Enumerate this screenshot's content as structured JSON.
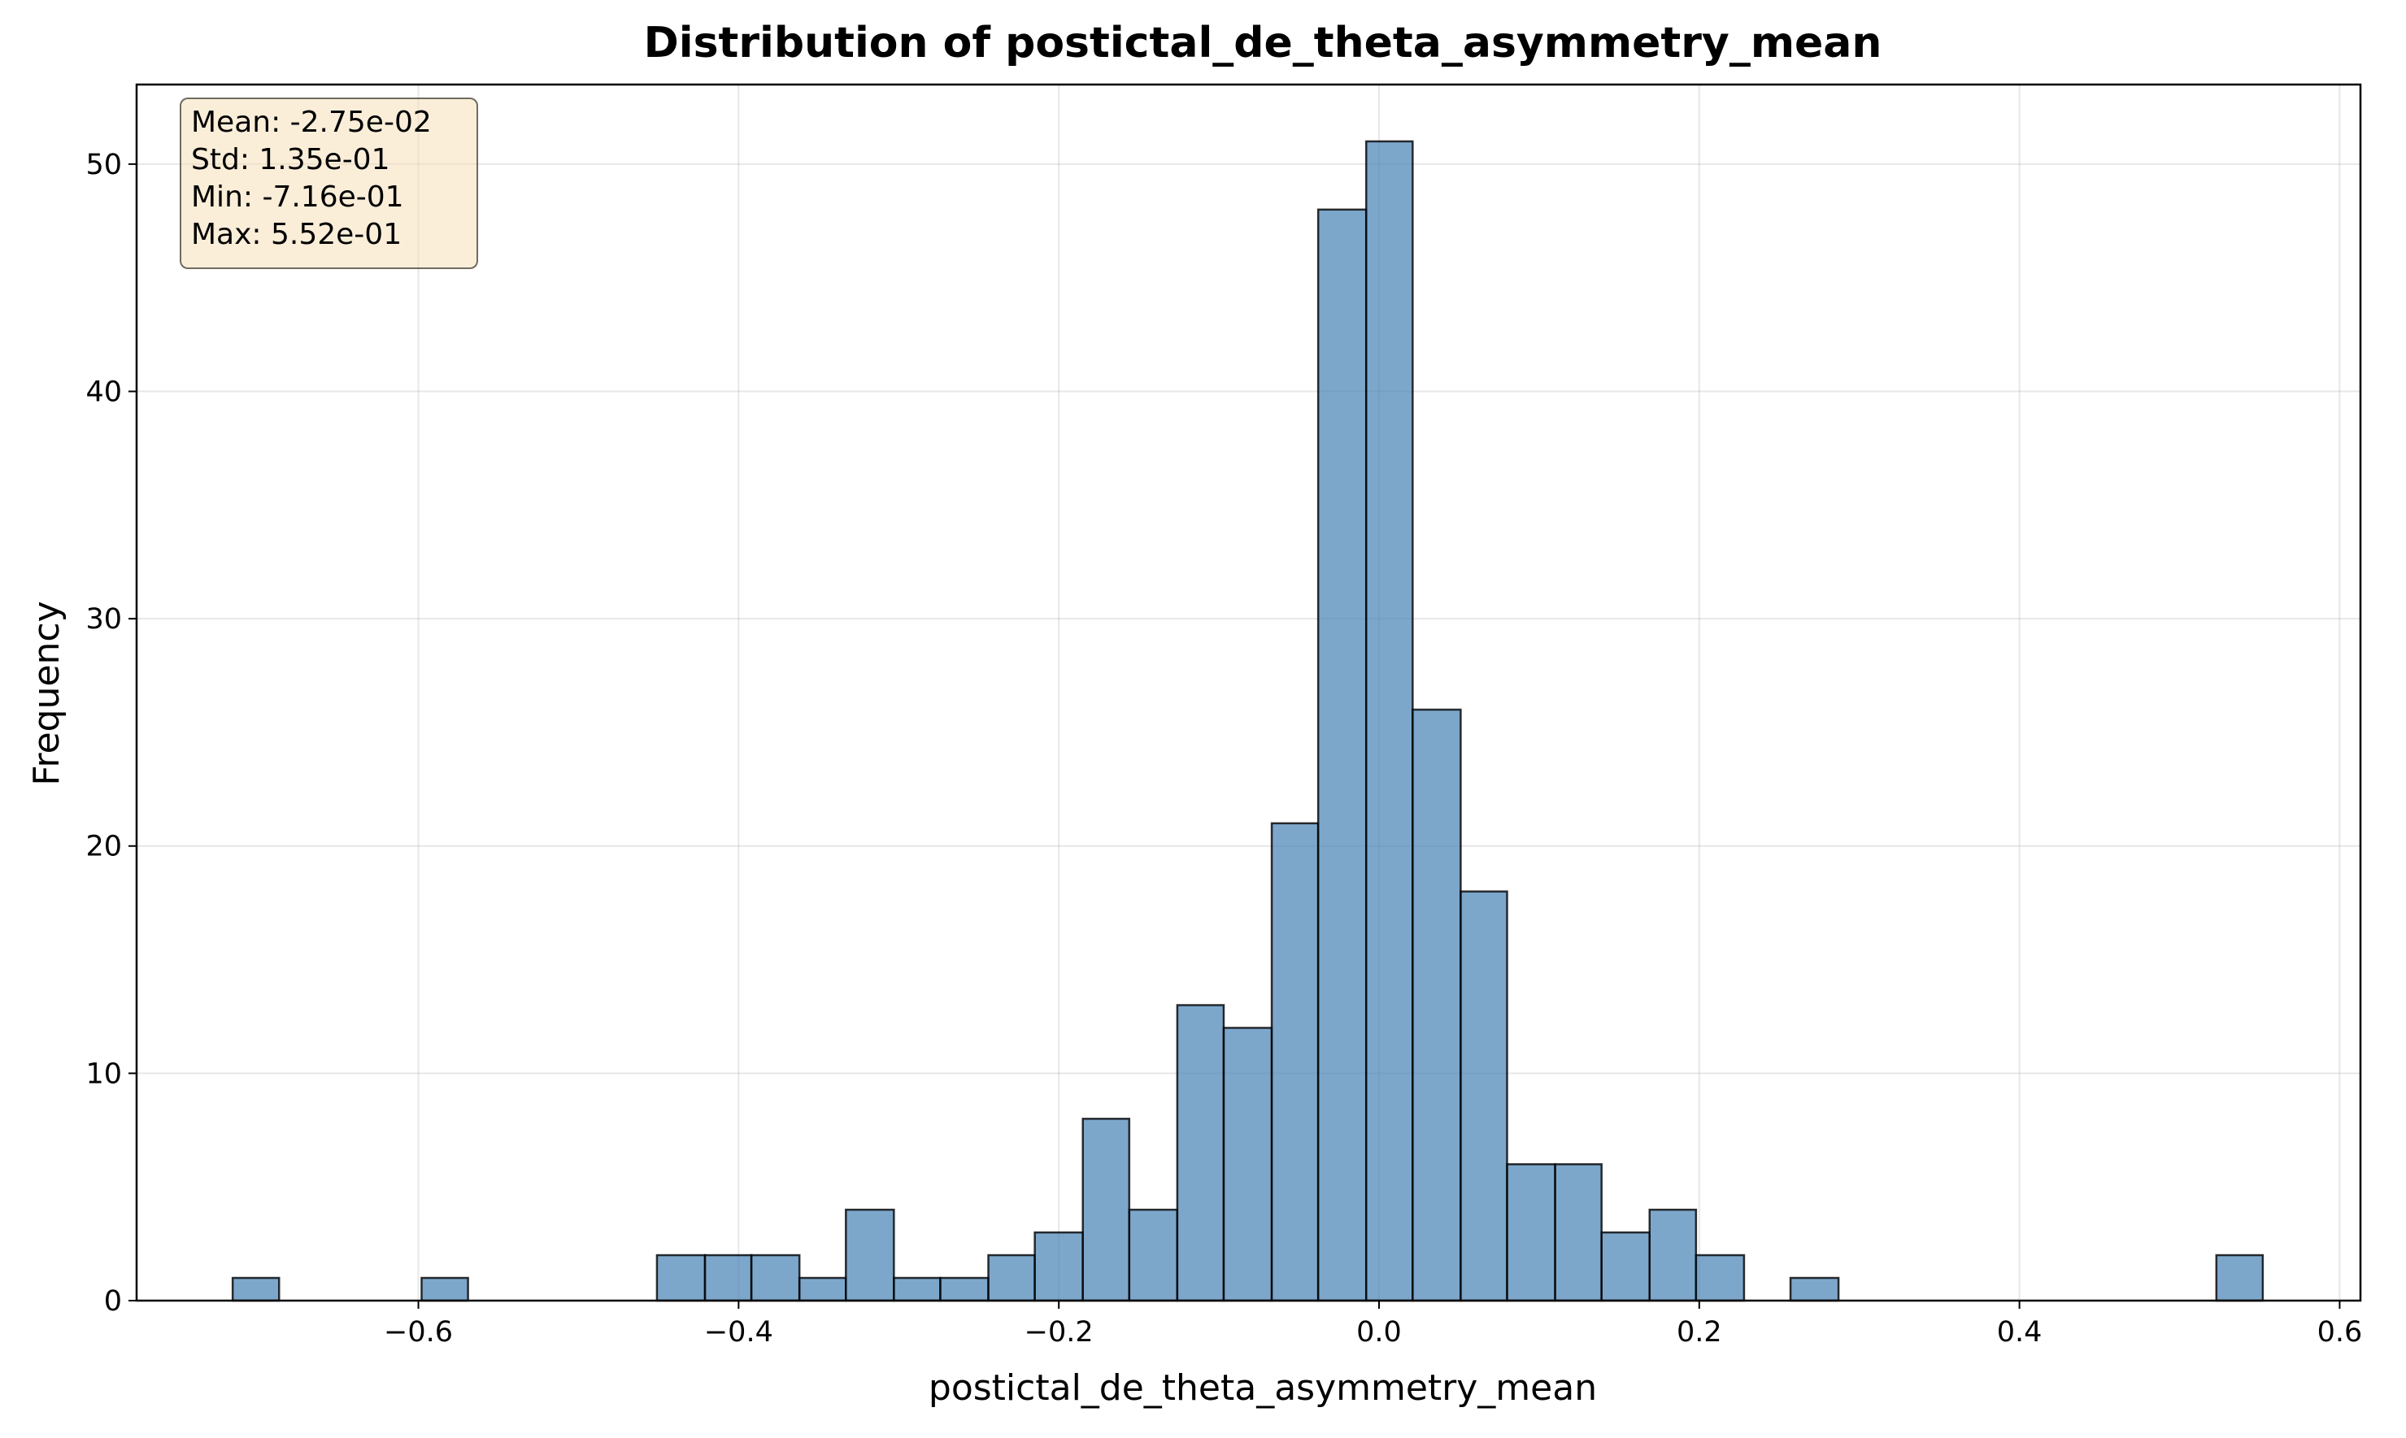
{
  "chart_data": {
    "type": "bar",
    "title": "Distribution of postictal_de_theta_asymmetry_mean",
    "xlabel": "postictal_de_theta_asymmetry_mean",
    "ylabel": "Frequency",
    "xlim": [
      -0.776,
      0.613
    ],
    "ylim": [
      0,
      53.5
    ],
    "grid": true,
    "bar_color": "#4682b4",
    "bin_edges": [
      -0.716,
      -0.687,
      -0.657,
      -0.628,
      -0.598,
      -0.569,
      -0.539,
      -0.51,
      -0.48,
      -0.451,
      -0.421,
      -0.392,
      -0.362,
      -0.333,
      -0.303,
      -0.274,
      -0.244,
      -0.215,
      -0.185,
      -0.156,
      -0.126,
      -0.097,
      -0.067,
      -0.038,
      -0.008,
      0.021,
      0.051,
      0.08,
      0.11,
      0.139,
      0.169,
      0.198,
      0.228,
      0.257,
      0.287,
      0.316,
      0.346,
      0.375,
      0.405,
      0.434,
      0.464,
      0.493,
      0.523,
      0.552
    ],
    "values": [
      1,
      0,
      0,
      0,
      1,
      0,
      0,
      0,
      0,
      2,
      2,
      2,
      1,
      4,
      1,
      1,
      2,
      3,
      8,
      4,
      13,
      12,
      21,
      48,
      51,
      26,
      18,
      6,
      6,
      3,
      4,
      2,
      0,
      1,
      0,
      0,
      0,
      0,
      0,
      0,
      0,
      0,
      2
    ],
    "x_ticks": [
      -0.6,
      -0.4,
      -0.2,
      0.0,
      0.2,
      0.4,
      0.6
    ],
    "x_tick_labels": [
      "−0.6",
      "−0.4",
      "−0.2",
      "0.0",
      "0.2",
      "0.4",
      "0.6"
    ],
    "y_ticks": [
      0,
      10,
      20,
      30,
      40,
      50
    ],
    "y_tick_labels": [
      "0",
      "10",
      "20",
      "30",
      "40",
      "50"
    ],
    "annotation_box": {
      "placement": "top-left",
      "lines": [
        "Mean: -2.75e-02",
        "Std: 1.35e-01",
        "Min: -7.16e-01",
        "Max: 5.52e-01"
      ]
    }
  }
}
